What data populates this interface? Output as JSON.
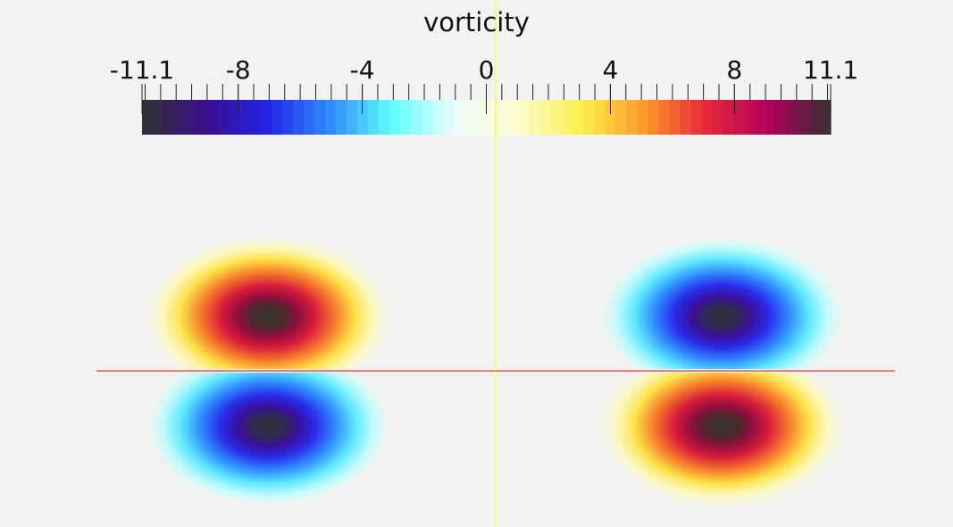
{
  "colorbar": {
    "title": "vorticity",
    "range": [
      -11.1,
      11.1
    ],
    "tick_labels": [
      {
        "value": -11.1,
        "text": "-11.1"
      },
      {
        "value": -8,
        "text": "-8"
      },
      {
        "value": -4,
        "text": "-4"
      },
      {
        "value": 0,
        "text": "0"
      },
      {
        "value": 4,
        "text": "4"
      },
      {
        "value": 8,
        "text": "8"
      },
      {
        "value": 11.1,
        "text": "11.1"
      }
    ],
    "minor_tick_step": 0.5,
    "colormap": [
      "#323232",
      "#3a0f8a",
      "#2323e6",
      "#2f8cff",
      "#5fffff",
      "#eefcfc",
      "#fdfbd0",
      "#fbf24d",
      "#fd9c2a",
      "#e8283a",
      "#b1005b",
      "#323232"
    ]
  },
  "axes_lines": {
    "horizontal_color": "#e01010",
    "vertical_color": "#ffff20"
  },
  "vortices": [
    {
      "name": "upper-left",
      "sign": "positive"
    },
    {
      "name": "upper-right",
      "sign": "negative"
    },
    {
      "name": "lower-left",
      "sign": "negative"
    },
    {
      "name": "lower-right",
      "sign": "positive"
    }
  ]
}
